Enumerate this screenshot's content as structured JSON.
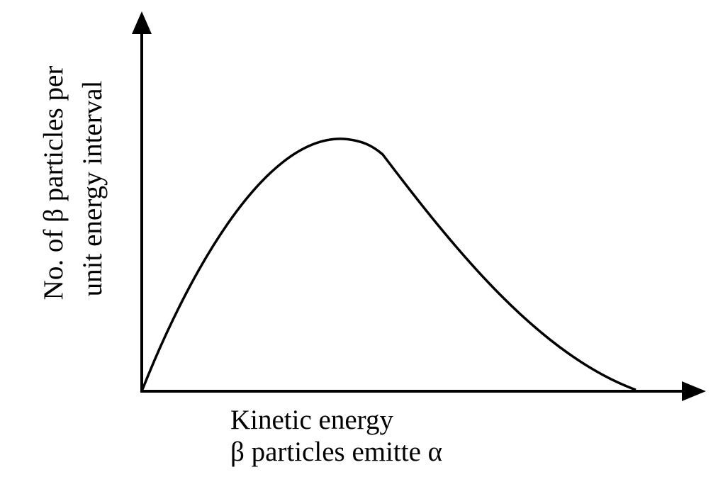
{
  "y_axis": {
    "label_lines": [
      "No. of β particles per",
      "unit energy interval"
    ]
  },
  "x_axis": {
    "label_lines": [
      "Kinetic energy",
      "β particles emitte α"
    ]
  }
}
